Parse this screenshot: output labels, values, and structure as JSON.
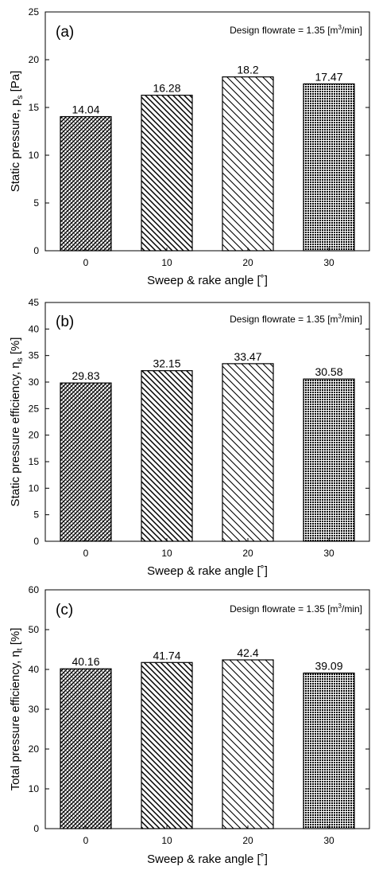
{
  "chart_data": [
    {
      "type": "bar",
      "panel_label": "(a)",
      "annotation": "Design flowrate = 1.35 [m3/min]",
      "annotation_parts": {
        "pre": "Design flowrate = 1.35 [m",
        "sup": "3",
        "post": "/min]"
      },
      "xlabel": "Sweep & rake angle [˚]",
      "ylabel": {
        "pre": "Static pressure, p",
        "sub": "s",
        "post": " [Pa]"
      },
      "categories": [
        "0",
        "10",
        "20",
        "30"
      ],
      "values": [
        14.04,
        16.28,
        18.2,
        17.47
      ],
      "value_labels": [
        "14.04",
        "16.28",
        "18.2",
        "17.47"
      ],
      "ylim": [
        0,
        25
      ],
      "yticks": [
        0,
        5,
        10,
        15,
        20,
        25
      ],
      "ytick_labels": [
        "0",
        "5",
        "10",
        "15",
        "20",
        "25"
      ],
      "bar_patterns": [
        "cross-hatch",
        "diagonal-down",
        "diagonal-down-wide",
        "dense-dots"
      ],
      "grid": false
    },
    {
      "type": "bar",
      "panel_label": "(b)",
      "annotation": "Design flowrate = 1.35 [m3/min]",
      "annotation_parts": {
        "pre": "Design flowrate = 1.35 [m",
        "sup": "3",
        "post": "/min]"
      },
      "xlabel": "Sweep & rake angle [˚]",
      "ylabel": {
        "pre": "Static pressure efficiency, η",
        "sub": "s",
        "post": " [%]"
      },
      "categories": [
        "0",
        "10",
        "20",
        "30"
      ],
      "values": [
        29.83,
        32.15,
        33.47,
        30.58
      ],
      "value_labels": [
        "29.83",
        "32.15",
        "33.47",
        "30.58"
      ],
      "ylim": [
        0,
        45
      ],
      "yticks": [
        0,
        5,
        10,
        15,
        20,
        25,
        30,
        35,
        40,
        45
      ],
      "ytick_labels": [
        "0",
        "5",
        "10",
        "15",
        "20",
        "25",
        "30",
        "35",
        "40",
        "45"
      ],
      "bar_patterns": [
        "cross-hatch",
        "diagonal-down",
        "diagonal-down-wide",
        "dense-dots"
      ],
      "grid": false
    },
    {
      "type": "bar",
      "panel_label": "(c)",
      "annotation": "Design flowrate = 1.35 [m3/min]",
      "annotation_parts": {
        "pre": "Design flowrate = 1.35 [m",
        "sup": "3",
        "post": "/min]"
      },
      "xlabel": "Sweep & rake angle [˚]",
      "ylabel": {
        "pre": "Total pressure efficiency, η",
        "sub": "t",
        "post": " [%]"
      },
      "categories": [
        "0",
        "10",
        "20",
        "30"
      ],
      "values": [
        40.16,
        41.74,
        42.4,
        39.09
      ],
      "value_labels": [
        "40.16",
        "41.74",
        "42.4",
        "39.09"
      ],
      "ylim": [
        0,
        60
      ],
      "yticks": [
        0,
        10,
        20,
        30,
        40,
        50,
        60
      ],
      "ytick_labels": [
        "0",
        "10",
        "20",
        "30",
        "40",
        "50",
        "60"
      ],
      "bar_patterns": [
        "cross-hatch",
        "diagonal-down",
        "diagonal-down-wide",
        "dense-dots"
      ],
      "grid": false
    }
  ]
}
